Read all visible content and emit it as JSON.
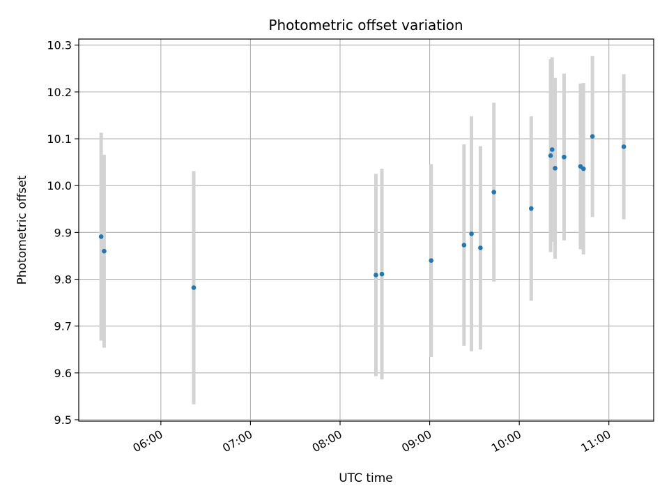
{
  "chart_data": {
    "type": "scatter",
    "title": "Photometric offset variation",
    "xlabel": "UTC time",
    "ylabel": "Photometric offset",
    "grid": true,
    "x_ticks": [
      "06:00",
      "07:00",
      "08:00",
      "09:00",
      "10:00",
      "11:00"
    ],
    "x_range": [
      "05:05",
      "11:30"
    ],
    "y_ticks": [
      "9.5",
      "9.6",
      "9.7",
      "9.8",
      "9.9",
      "10.0",
      "10.1",
      "10.2",
      "10.3"
    ],
    "ylim": [
      9.497,
      10.313
    ],
    "colors": {
      "point": "#1f77b4",
      "errorbar": "#d3d3d3",
      "grid": "#b0b0b0"
    },
    "points": [
      {
        "x": "05:20",
        "y": 9.891,
        "err": 0.222
      },
      {
        "x": "05:22",
        "y": 9.86,
        "err": 0.206
      },
      {
        "x": "06:22",
        "y": 9.782,
        "err": 0.249
      },
      {
        "x": "08:24",
        "y": 9.809,
        "err": 0.216
      },
      {
        "x": "08:28",
        "y": 9.811,
        "err": 0.225
      },
      {
        "x": "09:01",
        "y": 9.84,
        "err": 0.206
      },
      {
        "x": "09:23",
        "y": 9.873,
        "err": 0.215
      },
      {
        "x": "09:28",
        "y": 9.897,
        "err": 0.251
      },
      {
        "x": "09:34",
        "y": 9.867,
        "err": 0.217
      },
      {
        "x": "09:43",
        "y": 9.986,
        "err": 0.191
      },
      {
        "x": "10:08",
        "y": 9.951,
        "err": 0.197
      },
      {
        "x": "10:21",
        "y": 10.064,
        "err": 0.206
      },
      {
        "x": "10:22",
        "y": 10.077,
        "err": 0.197
      },
      {
        "x": "10:24",
        "y": 10.037,
        "err": 0.193
      },
      {
        "x": "10:30",
        "y": 10.061,
        "err": 0.178
      },
      {
        "x": "10:41",
        "y": 10.041,
        "err": 0.177
      },
      {
        "x": "10:43",
        "y": 10.036,
        "err": 0.183
      },
      {
        "x": "10:49",
        "y": 10.105,
        "err": 0.172
      },
      {
        "x": "11:10",
        "y": 10.083,
        "err": 0.155
      }
    ]
  }
}
